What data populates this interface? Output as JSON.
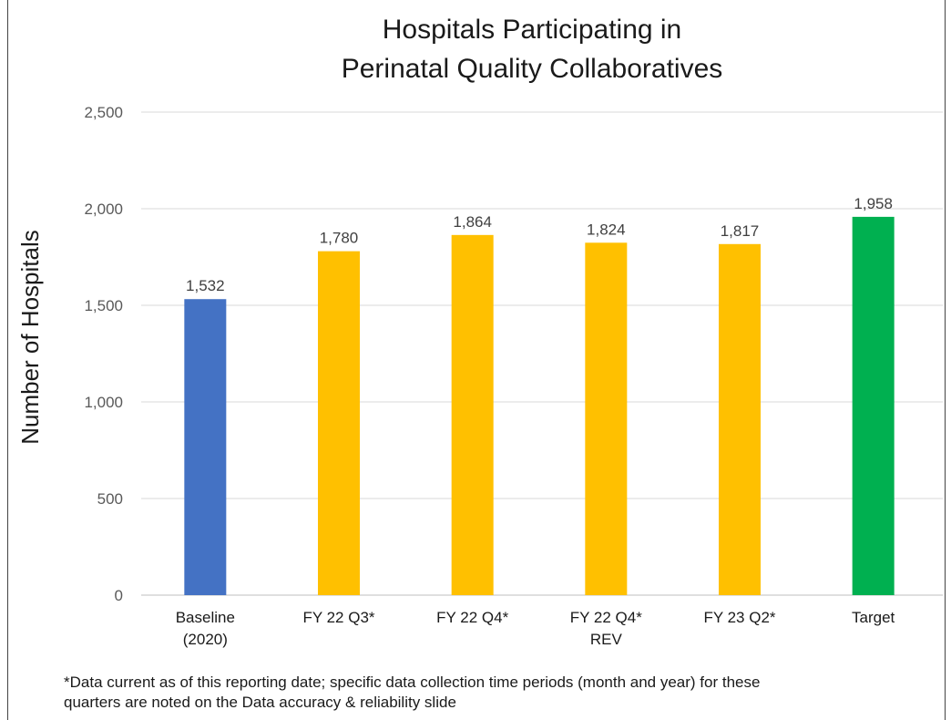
{
  "chart_data": {
    "type": "bar",
    "title_lines": [
      "Hospitals Participating in",
      "Perinatal Quality Collaboratives"
    ],
    "ylabel": "Number of Hospitals",
    "ylim": [
      0,
      2500
    ],
    "yticks": [
      0,
      500,
      1000,
      1500,
      2000,
      2500
    ],
    "ytick_labels": [
      "0",
      "500",
      "1,000",
      "1,500",
      "2,000",
      "2,500"
    ],
    "categories": [
      [
        "Baseline",
        "(2020)"
      ],
      [
        "FY 22 Q3*"
      ],
      [
        "FY 22 Q4*"
      ],
      [
        "FY 22 Q4*",
        "REV"
      ],
      [
        "FY 23 Q2*"
      ],
      [
        "Target"
      ]
    ],
    "values": [
      1532,
      1780,
      1864,
      1824,
      1817,
      1958
    ],
    "value_labels": [
      "1,532",
      "1,780",
      "1,864",
      "1,824",
      "1,817",
      "1,958"
    ],
    "bar_colors": [
      "#4472C4",
      "#FFC000",
      "#FFC000",
      "#FFC000",
      "#FFC000",
      "#00B050"
    ],
    "grid": true
  },
  "footnote": {
    "line1": "*Data current as of this reporting date; specific data collection time periods (month and year) for these",
    "line2": "quarters are noted on the Data accuracy & reliability slide"
  }
}
